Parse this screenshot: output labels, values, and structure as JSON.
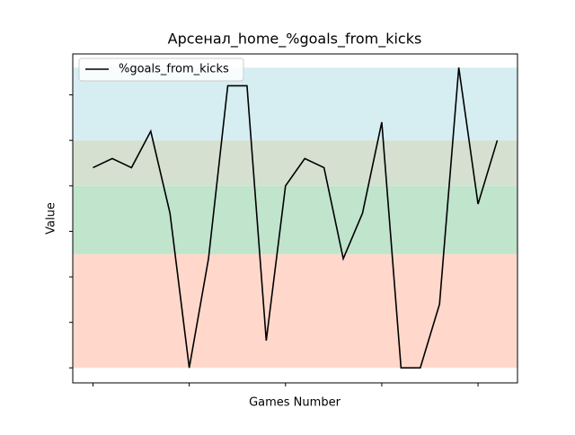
{
  "chart_data": {
    "type": "line",
    "title": "Арсенал_home_%goals_from_kicks",
    "x_label": "Games Number",
    "y_label": "Value",
    "x": [
      0,
      1,
      2,
      3,
      4,
      5,
      6,
      7,
      8,
      9,
      10,
      11,
      12,
      13,
      14,
      15,
      16,
      17,
      18,
      19,
      20,
      21
    ],
    "series": [
      {
        "name": "%goals_from_kicks",
        "color": "#000000",
        "values": [
          0.44,
          0.46,
          0.44,
          0.52,
          0.34,
          0,
          0.24,
          0.62,
          0.62,
          0.06,
          0.4,
          0.46,
          0.44,
          0.24,
          0.34,
          0.54,
          0,
          0,
          0.14,
          0.66,
          0.36,
          0.5
        ]
      }
    ],
    "bands": [
      {
        "from": 0,
        "to": 0.25,
        "color": "#ffd8cb"
      },
      {
        "from": 0.25,
        "to": 0.4,
        "color": "#c0e4cc"
      },
      {
        "from": 0.4,
        "to": 0.5,
        "color": "#d5e0d0"
      },
      {
        "from": 0.5,
        "to": 0.66,
        "color": "#d6eef2"
      }
    ],
    "xlim": [
      -1.05,
      22.05
    ],
    "xticks": [
      0,
      5,
      10,
      15,
      20
    ],
    "ylim": [
      -0.033,
      0.69
    ],
    "yticks": [
      0,
      0.1,
      0.2,
      0.3,
      0.4,
      0.5,
      0.6
    ],
    "tick_labels_shown": false,
    "legend": "upper left"
  }
}
